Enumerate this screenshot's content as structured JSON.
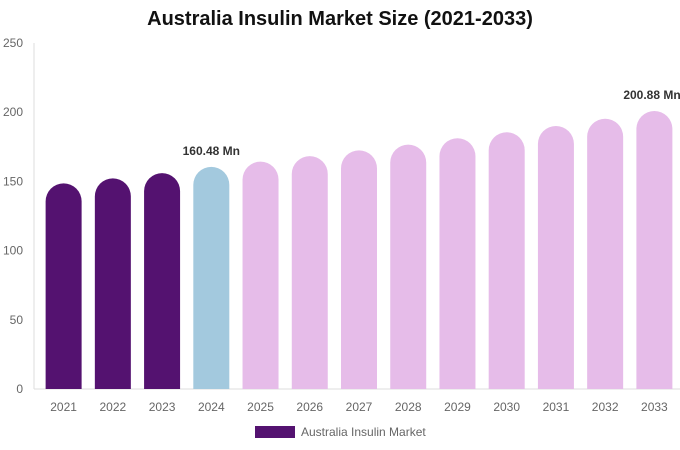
{
  "chart_data": {
    "type": "bar",
    "title": "Australia Insulin Market Size (2021-2033)",
    "categories": [
      "2021",
      "2022",
      "2023",
      "2024",
      "2025",
      "2026",
      "2027",
      "2028",
      "2029",
      "2030",
      "2031",
      "2032",
      "2033"
    ],
    "series": [
      {
        "name": "Australia Insulin Market",
        "values": [
          148.6,
          152.2,
          156.0,
          160.48,
          164.3,
          168.3,
          172.4,
          176.6,
          181.2,
          185.5,
          190.0,
          195.3,
          200.88
        ]
      }
    ],
    "ylim": [
      0,
      250
    ],
    "yticks": [
      0,
      50,
      100,
      150,
      200,
      250
    ],
    "data_labels": {
      "3": "160.48 Mn",
      "12": "200.88 Mn"
    },
    "colors": {
      "historical": "#541270",
      "current": "#a3c9de",
      "forecast": "#e6bce9"
    },
    "bar_color_groups": [
      "historical",
      "historical",
      "historical",
      "current",
      "forecast",
      "forecast",
      "forecast",
      "forecast",
      "forecast",
      "forecast",
      "forecast",
      "forecast",
      "forecast"
    ],
    "grid": false,
    "legend": "bottom"
  }
}
